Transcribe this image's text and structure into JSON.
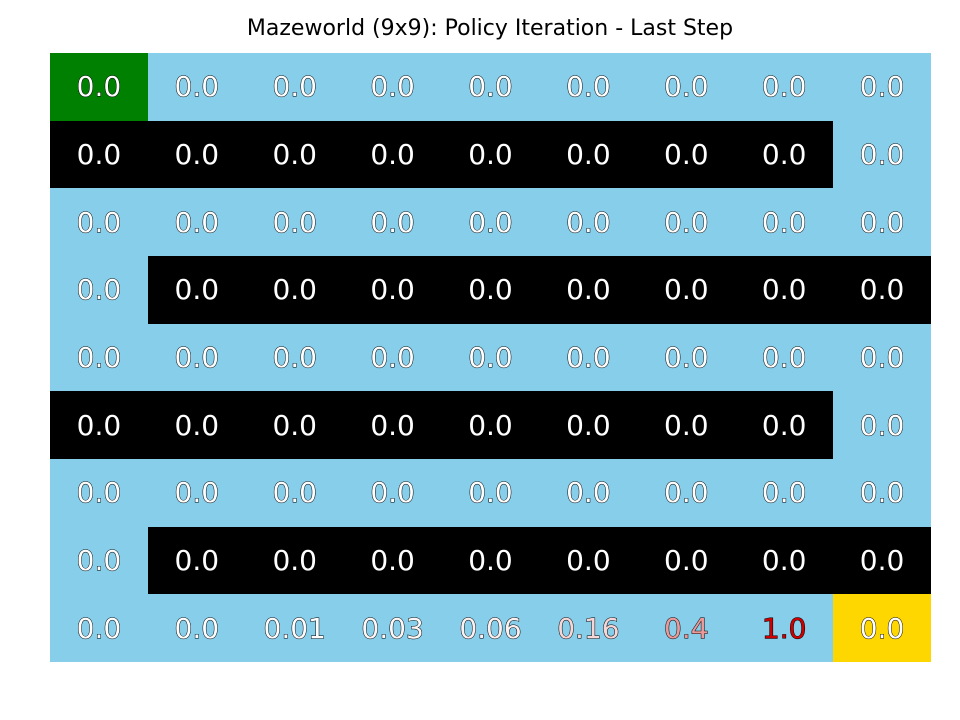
{
  "chart_data": {
    "type": "heatmap",
    "title": "Mazeworld (9x9): Policy Iteration - Last Step",
    "rows": 9,
    "cols": 9,
    "values": [
      [
        "0.0",
        "0.0",
        "0.0",
        "0.0",
        "0.0",
        "0.0",
        "0.0",
        "0.0",
        "0.0"
      ],
      [
        "0.0",
        "0.0",
        "0.0",
        "0.0",
        "0.0",
        "0.0",
        "0.0",
        "0.0",
        "0.0"
      ],
      [
        "0.0",
        "0.0",
        "0.0",
        "0.0",
        "0.0",
        "0.0",
        "0.0",
        "0.0",
        "0.0"
      ],
      [
        "0.0",
        "0.0",
        "0.0",
        "0.0",
        "0.0",
        "0.0",
        "0.0",
        "0.0",
        "0.0"
      ],
      [
        "0.0",
        "0.0",
        "0.0",
        "0.0",
        "0.0",
        "0.0",
        "0.0",
        "0.0",
        "0.0"
      ],
      [
        "0.0",
        "0.0",
        "0.0",
        "0.0",
        "0.0",
        "0.0",
        "0.0",
        "0.0",
        "0.0"
      ],
      [
        "0.0",
        "0.0",
        "0.0",
        "0.0",
        "0.0",
        "0.0",
        "0.0",
        "0.0",
        "0.0"
      ],
      [
        "0.0",
        "0.0",
        "0.0",
        "0.0",
        "0.0",
        "0.0",
        "0.0",
        "0.0",
        "0.0"
      ],
      [
        "0.0",
        "0.0",
        "0.01",
        "0.03",
        "0.06",
        "0.16",
        "0.4",
        "1.0",
        "0.0"
      ]
    ],
    "cell_types": [
      [
        "start",
        "open",
        "open",
        "open",
        "open",
        "open",
        "open",
        "open",
        "open"
      ],
      [
        "wall",
        "wall",
        "wall",
        "wall",
        "wall",
        "wall",
        "wall",
        "wall",
        "open"
      ],
      [
        "open",
        "open",
        "open",
        "open",
        "open",
        "open",
        "open",
        "open",
        "open"
      ],
      [
        "open",
        "wall",
        "wall",
        "wall",
        "wall",
        "wall",
        "wall",
        "wall",
        "wall"
      ],
      [
        "open",
        "open",
        "open",
        "open",
        "open",
        "open",
        "open",
        "open",
        "open"
      ],
      [
        "wall",
        "wall",
        "wall",
        "wall",
        "wall",
        "wall",
        "wall",
        "wall",
        "open"
      ],
      [
        "open",
        "open",
        "open",
        "open",
        "open",
        "open",
        "open",
        "open",
        "open"
      ],
      [
        "open",
        "wall",
        "wall",
        "wall",
        "wall",
        "wall",
        "wall",
        "wall",
        "wall"
      ],
      [
        "open",
        "open",
        "open",
        "open",
        "open",
        "open",
        "open",
        "open",
        "goal"
      ]
    ],
    "colors": {
      "open": "#87ceeb",
      "wall": "#000000",
      "start": "#008000",
      "goal": "#ffd700",
      "value_low": "#ffffff",
      "value_high": "#cc0000"
    }
  }
}
